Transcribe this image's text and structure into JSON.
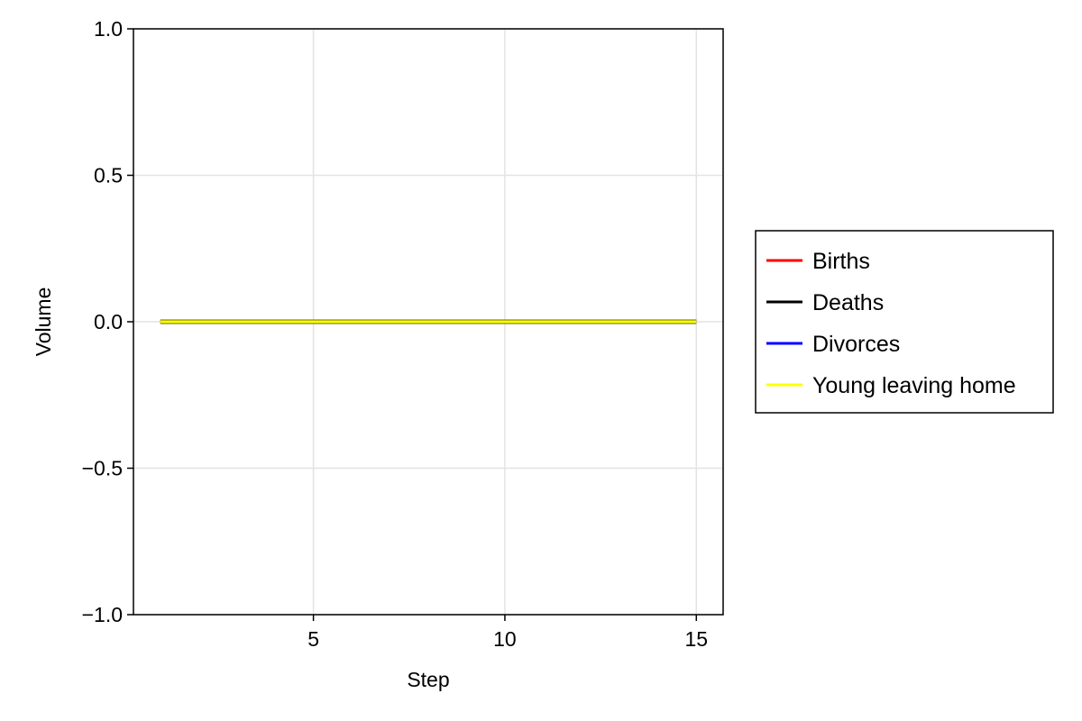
{
  "chart_data": {
    "type": "line",
    "xlabel": "Step",
    "ylabel": "Volume",
    "xlim": [
      0.3,
      15.7
    ],
    "ylim": [
      -1.0,
      1.0
    ],
    "xticks": [
      5,
      10,
      15
    ],
    "xtick_labels": [
      "5",
      "10",
      "15"
    ],
    "yticks": [
      -1.0,
      -0.5,
      0.0,
      0.5,
      1.0
    ],
    "ytick_labels": [
      "−1.0",
      "−0.5",
      "0.0",
      "0.5",
      "1.0"
    ],
    "grid": true,
    "legend_placement": "right-outside",
    "x": [
      1,
      2,
      3,
      4,
      5,
      6,
      7,
      8,
      9,
      10,
      11,
      12,
      13,
      14,
      15
    ],
    "series": [
      {
        "name": "Births",
        "color": "#ff0000",
        "values": [
          0,
          0,
          0,
          0,
          0,
          0,
          0,
          0,
          0,
          0,
          0,
          0,
          0,
          0,
          0
        ]
      },
      {
        "name": "Deaths",
        "color": "#000000",
        "values": [
          0,
          0,
          0,
          0,
          0,
          0,
          0,
          0,
          0,
          0,
          0,
          0,
          0,
          0,
          0
        ]
      },
      {
        "name": "Divorces",
        "color": "#0000ff",
        "values": [
          0,
          0,
          0,
          0,
          0,
          0,
          0,
          0,
          0,
          0,
          0,
          0,
          0,
          0,
          0
        ]
      },
      {
        "name": "Young leaving home",
        "color": "#ffff00",
        "values": [
          0,
          0,
          0,
          0,
          0,
          0,
          0,
          0,
          0,
          0,
          0,
          0,
          0,
          0,
          0
        ]
      }
    ]
  }
}
